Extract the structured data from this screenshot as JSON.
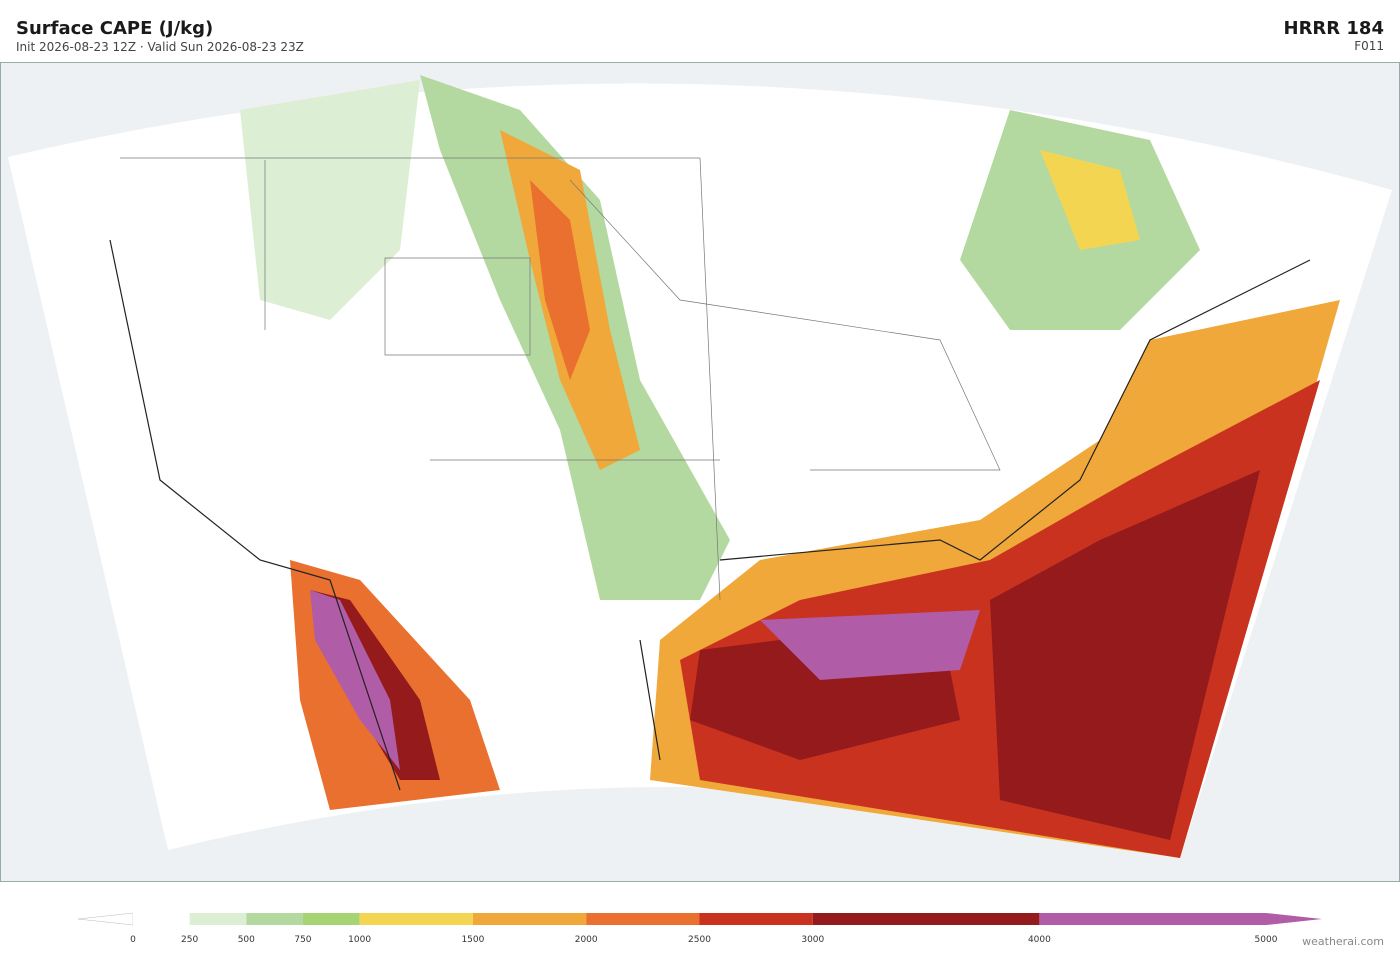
{
  "header": {
    "title": "Surface CAPE  (J/kg)",
    "subtitle": "Init 2026-08-23 12Z   ·   Valid Sun 2026-08-23 23Z",
    "model": "HRRR  184",
    "forecast_hour": "F011"
  },
  "colorbar": {
    "levels": [
      0,
      250,
      500,
      750,
      1000,
      1500,
      2000,
      2500,
      3000,
      4000,
      5000
    ],
    "colors": [
      "#ffffff",
      "#dcefd4",
      "#b4d9a0",
      "#a6d472",
      "#f3d552",
      "#f0a83a",
      "#e9702e",
      "#c8321f",
      "#941a1c",
      "#b05ca6"
    ]
  },
  "footer": {
    "credit": "weatherai.com"
  }
}
